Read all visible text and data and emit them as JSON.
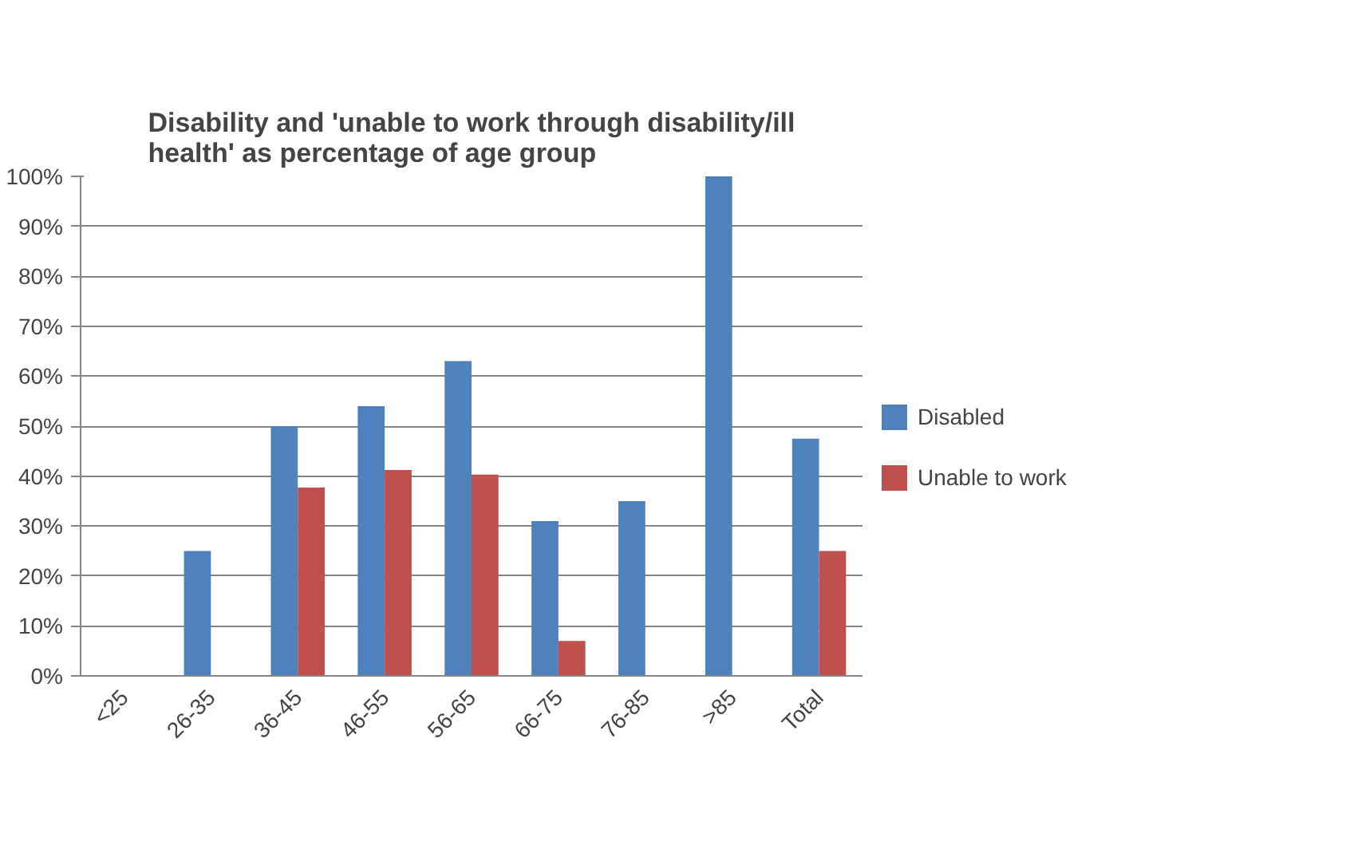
{
  "chart_data": {
    "type": "bar",
    "title": "Disability and 'unable to work through disability/ill health' as percentage of age group",
    "categories": [
      "<25",
      "26-35",
      "36-45",
      "46-55",
      "56-65",
      "66-75",
      "76-85",
      ">85",
      "Total"
    ],
    "series": [
      {
        "name": "Disabled",
        "color": "#4f81bd",
        "values": [
          null,
          25,
          50,
          54,
          63,
          31,
          35,
          100,
          47.5
        ]
      },
      {
        "name": "Unable to work",
        "color": "#c0504d",
        "values": [
          null,
          null,
          37.7,
          41.2,
          40.3,
          7,
          null,
          null,
          25
        ]
      }
    ],
    "ylim": [
      0,
      100
    ],
    "yticks": [
      {
        "value": 0,
        "label": "0%"
      },
      {
        "value": 10,
        "label": "10%"
      },
      {
        "value": 20,
        "label": "20%"
      },
      {
        "value": 30,
        "label": "30%"
      },
      {
        "value": 40,
        "label": "40%"
      },
      {
        "value": 50,
        "label": "50%"
      },
      {
        "value": 60,
        "label": "60%"
      },
      {
        "value": 70,
        "label": "70%"
      },
      {
        "value": 80,
        "label": "80%"
      },
      {
        "value": 90,
        "label": "90%"
      },
      {
        "value": 100,
        "label": "100%"
      }
    ],
    "grid": "y",
    "legend": "right"
  }
}
